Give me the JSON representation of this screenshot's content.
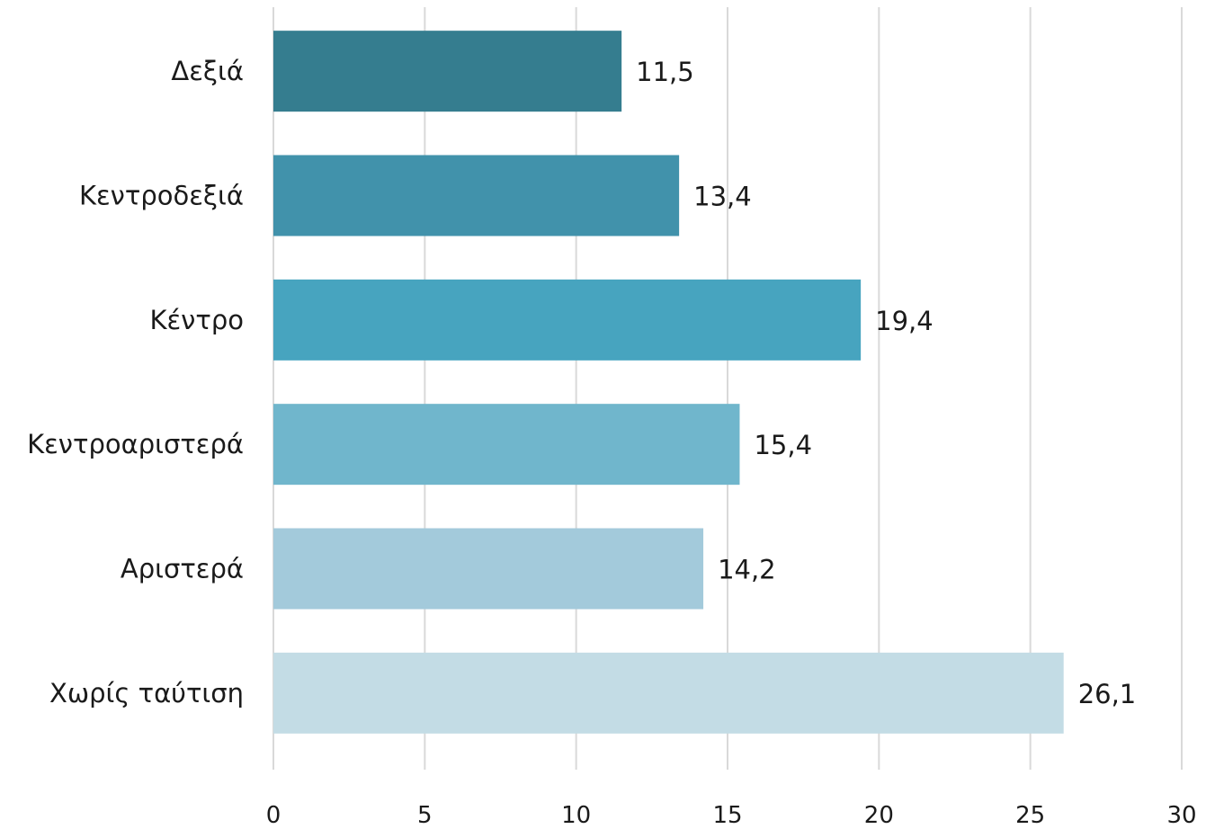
{
  "chart_data": {
    "type": "bar",
    "orientation": "horizontal",
    "categories": [
      "Δεξιά",
      "Κεντροδεξιά",
      "Κέντρο",
      "Κεντροαριστερά",
      "Αριστερά",
      "Χωρίς ταύτιση"
    ],
    "values": [
      11.5,
      13.4,
      19.4,
      15.4,
      14.2,
      26.1
    ],
    "data_labels": [
      "11,5",
      "13,4",
      "19,4",
      "15,4",
      "14,2",
      "26,1"
    ],
    "bar_colors": [
      "#357d8f",
      "#4192ab",
      "#47a4bf",
      "#70b6cc",
      "#a3cadb",
      "#c3dce5"
    ],
    "xlim": [
      0,
      30
    ],
    "xticks": [
      0,
      5,
      10,
      15,
      20,
      25,
      30
    ],
    "xtick_labels": [
      "0",
      "5",
      "10",
      "15",
      "20",
      "25",
      "30"
    ],
    "grid": true,
    "grid_color": "#d9d9d9",
    "title": "",
    "xlabel": "",
    "ylabel": ""
  }
}
